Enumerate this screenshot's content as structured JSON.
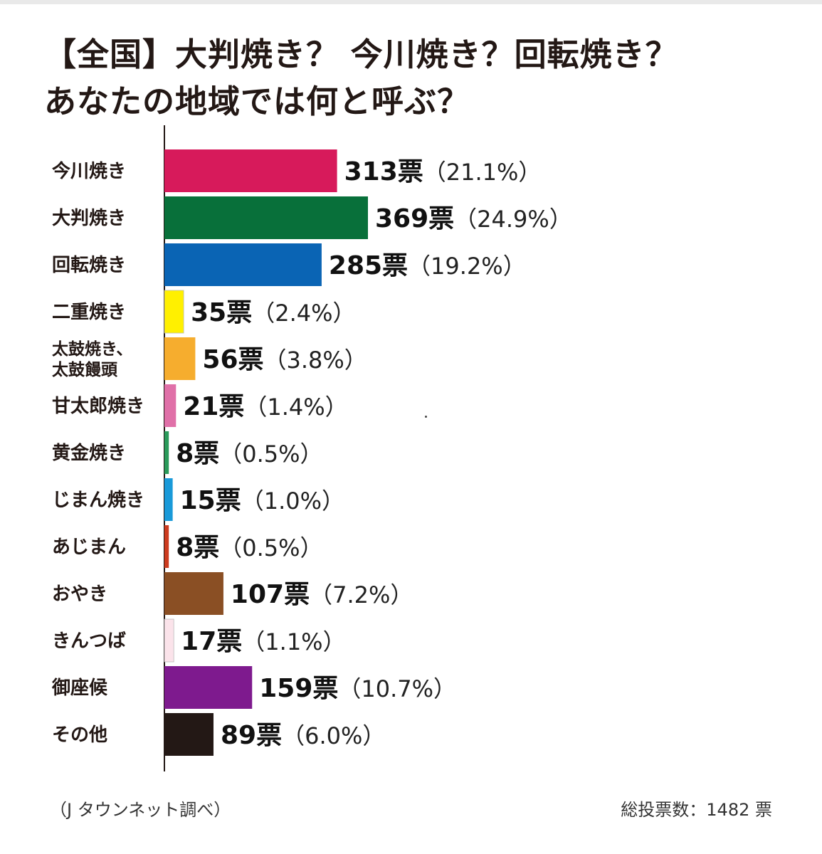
{
  "title_lines": [
    "【全国】大判焼き？ 今川焼き？回転焼き？",
    "あなたの地域では何と呼ぶ？"
  ],
  "source_note": "（J タウンネット調べ）",
  "total_note": "総投票数：1482 票",
  "chart_data": {
    "type": "bar",
    "orientation": "horizontal",
    "title": "【全国】大判焼き？ 今川焼き？回転焼き？ あなたの地域では何と呼ぶ？",
    "xlabel": "",
    "ylabel": "",
    "grid": false,
    "legend": "none",
    "categories": [
      [
        "今川焼き"
      ],
      [
        "大判焼き"
      ],
      [
        "回転焼き"
      ],
      [
        "二重焼き"
      ],
      [
        "太鼓焼き、",
        "太鼓饅頭"
      ],
      [
        "甘太郎焼き"
      ],
      [
        "黄金焼き"
      ],
      [
        "じまん焼き"
      ],
      [
        "あじまん"
      ],
      [
        "おやき"
      ],
      [
        "きんつば"
      ],
      [
        "御座候"
      ],
      [
        "その他"
      ]
    ],
    "values": [
      313,
      369,
      285,
      35,
      56,
      21,
      8,
      15,
      8,
      107,
      17,
      159,
      89
    ],
    "vote_labels": [
      "313票",
      "369票",
      "285票",
      "35票",
      "56票",
      "21票",
      "8票",
      "15票",
      "8票",
      "107票",
      "17票",
      "159票",
      "89票"
    ],
    "percent_labels": [
      "（21.1%）",
      "（24.9%）",
      "（19.2%）",
      "（2.4%）",
      "（3.8%）",
      "（1.4%）",
      "（0.5%）",
      "（1.0%）",
      "（0.5%）",
      "（7.2%）",
      "（1.1%）",
      "（10.7%）",
      "（6.0%）"
    ],
    "colors": [
      "#d71a5b",
      "#08703a",
      "#0a64b4",
      "#fff000",
      "#f6ad2e",
      "#e070a8",
      "#2a9a5a",
      "#1a9ad9",
      "#cc3b1f",
      "#8a4f24",
      "#fbe3ea",
      "#7e1a8e",
      "#231815"
    ],
    "xlim": [
      0,
      369
    ]
  }
}
